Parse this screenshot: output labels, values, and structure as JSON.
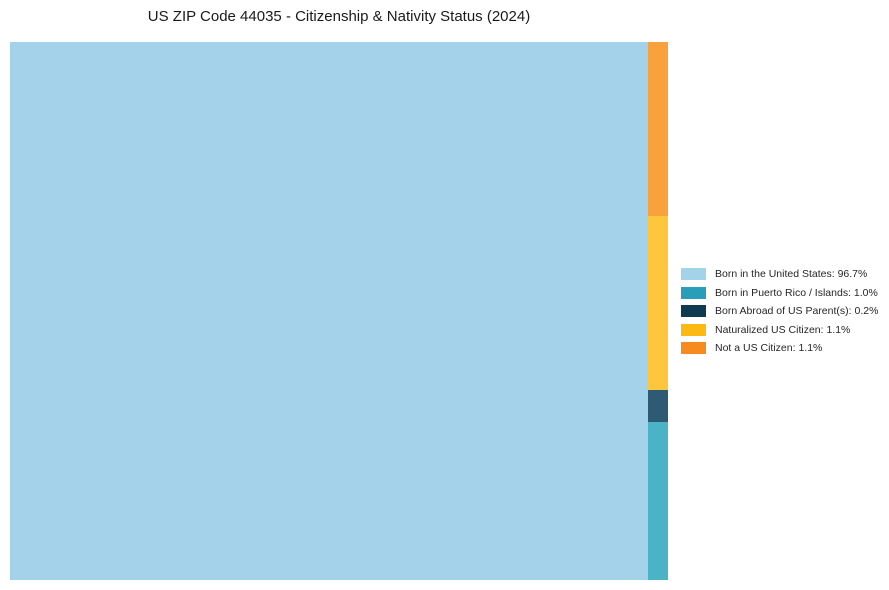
{
  "page": {
    "background_color": "#ffffff"
  },
  "chart_data": {
    "type": "treemap",
    "title": "US ZIP Code 44035 - Citizenship & Nativity Status (2024)",
    "legend_position": "right",
    "grid": false,
    "units": "percent",
    "total": 100,
    "segments": [
      {
        "label": "Born in the United States",
        "value": 96.7,
        "display": "Born in the United States: 96.7%",
        "legend_color": "#a3d3ea",
        "tile_color": "#a3d2ea"
      },
      {
        "label": "Born in Puerto Rico / Islands",
        "value": 1.0,
        "display": "Born in Puerto Rico / Islands: 1.0%",
        "legend_color": "#2a9eb8",
        "tile_color": "#4ab3c6"
      },
      {
        "label": "Born Abroad of US Parent(s)",
        "value": 0.2,
        "display": "Born Abroad of US Parent(s): 0.2%",
        "legend_color": "#0e3b50",
        "tile_color": "#2f5a73"
      },
      {
        "label": "Naturalized US Citizen",
        "value": 1.1,
        "display": "Naturalized US Citizen: 1.1%",
        "legend_color": "#fcb813",
        "tile_color": "#fdc63d"
      },
      {
        "label": "Not a US Citizen",
        "value": 1.1,
        "display": "Not a US Citizen: 1.1%",
        "legend_color": "#f68b1f",
        "tile_color": "#f9a23d"
      }
    ]
  }
}
